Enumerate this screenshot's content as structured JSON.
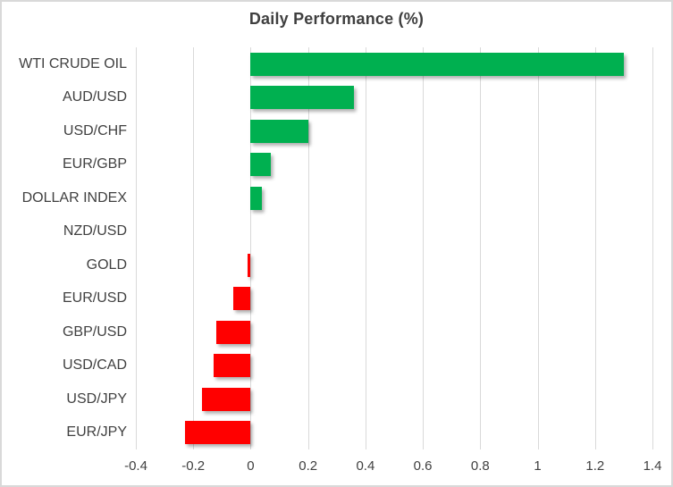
{
  "chart_data": {
    "type": "bar",
    "orientation": "horizontal",
    "title": "Daily Performance (%)",
    "categories": [
      "WTI CRUDE OIL",
      "AUD/USD",
      "USD/CHF",
      "EUR/GBP",
      "DOLLAR INDEX",
      "NZD/USD",
      "GOLD",
      "EUR/USD",
      "GBP/USD",
      "USD/CAD",
      "USD/JPY",
      "EUR/JPY"
    ],
    "values": [
      1.3,
      0.36,
      0.2,
      0.07,
      0.04,
      0.0,
      -0.01,
      -0.06,
      -0.12,
      -0.13,
      -0.17,
      -0.23
    ],
    "xlabel": "",
    "ylabel": "",
    "xlim": [
      -0.4,
      1.4
    ],
    "xticks": [
      "-0.4",
      "-0.2",
      "0",
      "0.2",
      "0.4",
      "0.6",
      "0.8",
      "1",
      "1.2",
      "1.4"
    ],
    "xtick_values": [
      -0.4,
      -0.2,
      0,
      0.2,
      0.4,
      0.6,
      0.8,
      1,
      1.2,
      1.4
    ],
    "grid": true,
    "legend": "none",
    "colors": {
      "positive": "#00B050",
      "negative": "#FF0000",
      "gridline": "#D9D9D9",
      "text": "#404040",
      "title_text": "#3F3F3F",
      "border": "#D9D9D9"
    }
  }
}
